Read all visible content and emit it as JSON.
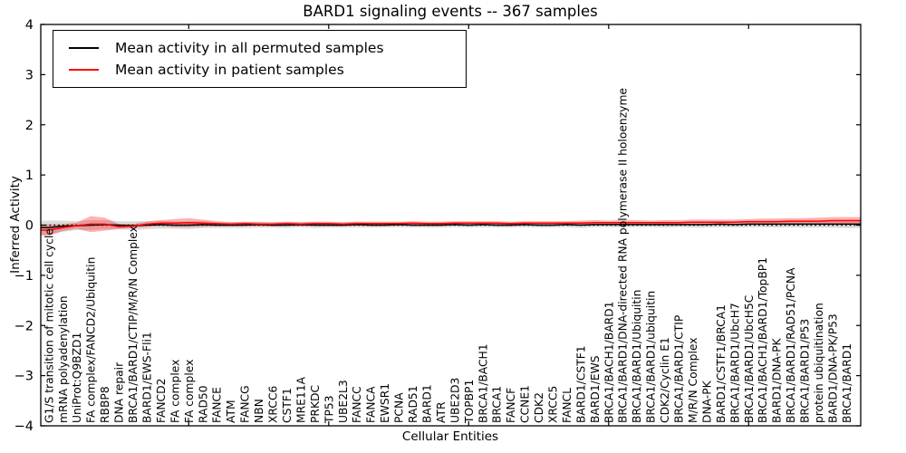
{
  "chart_data": {
    "type": "line",
    "title": "BARD1 signaling events -- 367 samples",
    "xlabel": "Cellular Entities",
    "ylabel": "Inferred Activity",
    "ylim": [
      -4,
      4
    ],
    "yticks": [
      -4,
      -3,
      -2,
      -1,
      0,
      1,
      2,
      3,
      4
    ],
    "x_major_ticks_at_category_index": [
      10,
      20,
      30,
      40,
      50
    ],
    "grid": false,
    "zero_line": {
      "style": "dotted",
      "color": "#000000",
      "y": 0
    },
    "legend": {
      "position": "upper-left",
      "entries": [
        {
          "label": "Mean activity in all permuted samples",
          "color": "#000000"
        },
        {
          "label": "Mean activity in patient samples",
          "color": "#ff0000"
        }
      ]
    },
    "categories": [
      "G1/S transition of mitotic cell cycle",
      "mRNA polyadenylation",
      "UniProt:Q9BZD1",
      "FA complex/FANCD2/Ubiquitin",
      "RBBP8",
      "DNA repair",
      "BRCA1/BARD1/CTIP/M/R/N Complex",
      "BARD1/EWS-Fli1",
      "FANCD2",
      "FA complex",
      "FA complex",
      "RAD50",
      "FANCE",
      "ATM",
      "FANCG",
      "NBN",
      "XRCC6",
      "CSTF1",
      "MRE11A",
      "PRKDC",
      "TP53",
      "UBE2L3",
      "FANCC",
      "FANCA",
      "EWSR1",
      "PCNA",
      "RAD51",
      "BARD1",
      "ATR",
      "UBE2D3",
      "TOPBP1",
      "BRCA1/BACH1",
      "BRCA1",
      "FANCF",
      "CCNE1",
      "CDK2",
      "XRCC5",
      "FANCL",
      "BARD1/CSTF1",
      "BARD1/EWS",
      "BRCA1/BACH1/BARD1",
      "BRCA1/BARD1/DNA-directed RNA polymerase II holoenzyme",
      "BRCA1/BARD1/Ubiquitin",
      "BRCA1/BARD1/ubiquitin",
      "CDK2/Cyclin E1",
      "BRCA1/BARD1/CTIP",
      "M/R/N Complex",
      "DNA-PK",
      "BARD1/CSTF1/BRCA1",
      "BRCA1/BARD1/UbcH7",
      "BRCA1/BARD1/UbcH5C",
      "BRCA1/BACH1/BARD1/TopBP1",
      "BARD1/DNA-PK",
      "BRCA1/BARD1/RAD51/PCNA",
      "BRCA1/BARD1/P53",
      "protein ubiquitination",
      "BARD1/DNA-PK/P53",
      "BRCA1/BARD1"
    ],
    "series": [
      {
        "name": "Mean activity in all permuted samples",
        "color": "#000000",
        "band_color": "rgba(0,0,0,0.14)",
        "values": [
          -0.05,
          -0.02,
          -0.01,
          0.0,
          0.01,
          0.0,
          -0.01,
          0.0,
          0.01,
          0.0,
          0.0,
          0.01,
          0.0,
          0.0,
          0.0,
          0.01,
          0.0,
          0.0,
          0.01,
          0.0,
          0.0,
          0.0,
          0.01,
          0.0,
          0.0,
          0.01,
          0.0,
          0.0,
          0.0,
          0.01,
          0.0,
          0.01,
          0.0,
          0.0,
          0.01,
          0.0,
          0.0,
          0.01,
          0.0,
          0.01,
          0.01,
          0.01,
          0.01,
          0.01,
          0.01,
          0.01,
          0.01,
          0.01,
          0.02,
          0.01,
          0.02,
          0.02,
          0.02,
          0.02,
          0.02,
          0.02,
          0.02,
          0.02
        ],
        "band_halfwidth": [
          0.14,
          0.11,
          0.09,
          0.1,
          0.09,
          0.08,
          0.09,
          0.08,
          0.08,
          0.07,
          0.08,
          0.07,
          0.06,
          0.06,
          0.06,
          0.06,
          0.05,
          0.06,
          0.05,
          0.06,
          0.05,
          0.05,
          0.06,
          0.05,
          0.05,
          0.05,
          0.05,
          0.05,
          0.05,
          0.05,
          0.05,
          0.05,
          0.05,
          0.05,
          0.05,
          0.05,
          0.05,
          0.05,
          0.06,
          0.05,
          0.05,
          0.06,
          0.05,
          0.05,
          0.06,
          0.05,
          0.06,
          0.06,
          0.06,
          0.06,
          0.06,
          0.06,
          0.07,
          0.06,
          0.07,
          0.07,
          0.07,
          0.08
        ]
      },
      {
        "name": "Mean activity in patient samples",
        "color": "#ff0000",
        "band_color": "rgba(255,0,0,0.30)",
        "values": [
          -0.1,
          -0.05,
          -0.01,
          0.02,
          0.02,
          -0.03,
          -0.02,
          0.02,
          0.04,
          0.04,
          0.05,
          0.04,
          0.03,
          0.02,
          0.03,
          0.02,
          0.02,
          0.03,
          0.02,
          0.03,
          0.03,
          0.02,
          0.03,
          0.03,
          0.03,
          0.03,
          0.04,
          0.03,
          0.03,
          0.04,
          0.04,
          0.04,
          0.04,
          0.03,
          0.04,
          0.04,
          0.04,
          0.04,
          0.04,
          0.05,
          0.05,
          0.05,
          0.05,
          0.05,
          0.05,
          0.05,
          0.06,
          0.06,
          0.06,
          0.06,
          0.07,
          0.07,
          0.07,
          0.08,
          0.08,
          0.08,
          0.09,
          0.09
        ],
        "band_halfwidth": [
          0.11,
          0.07,
          0.06,
          0.16,
          0.13,
          0.05,
          0.04,
          0.05,
          0.06,
          0.08,
          0.09,
          0.07,
          0.05,
          0.04,
          0.04,
          0.04,
          0.04,
          0.04,
          0.04,
          0.04,
          0.04,
          0.04,
          0.04,
          0.04,
          0.04,
          0.04,
          0.04,
          0.04,
          0.04,
          0.04,
          0.04,
          0.04,
          0.04,
          0.04,
          0.04,
          0.04,
          0.04,
          0.04,
          0.05,
          0.05,
          0.04,
          0.05,
          0.05,
          0.04,
          0.05,
          0.05,
          0.05,
          0.05,
          0.05,
          0.05,
          0.05,
          0.06,
          0.06,
          0.06,
          0.06,
          0.07,
          0.07,
          0.07
        ]
      }
    ]
  }
}
